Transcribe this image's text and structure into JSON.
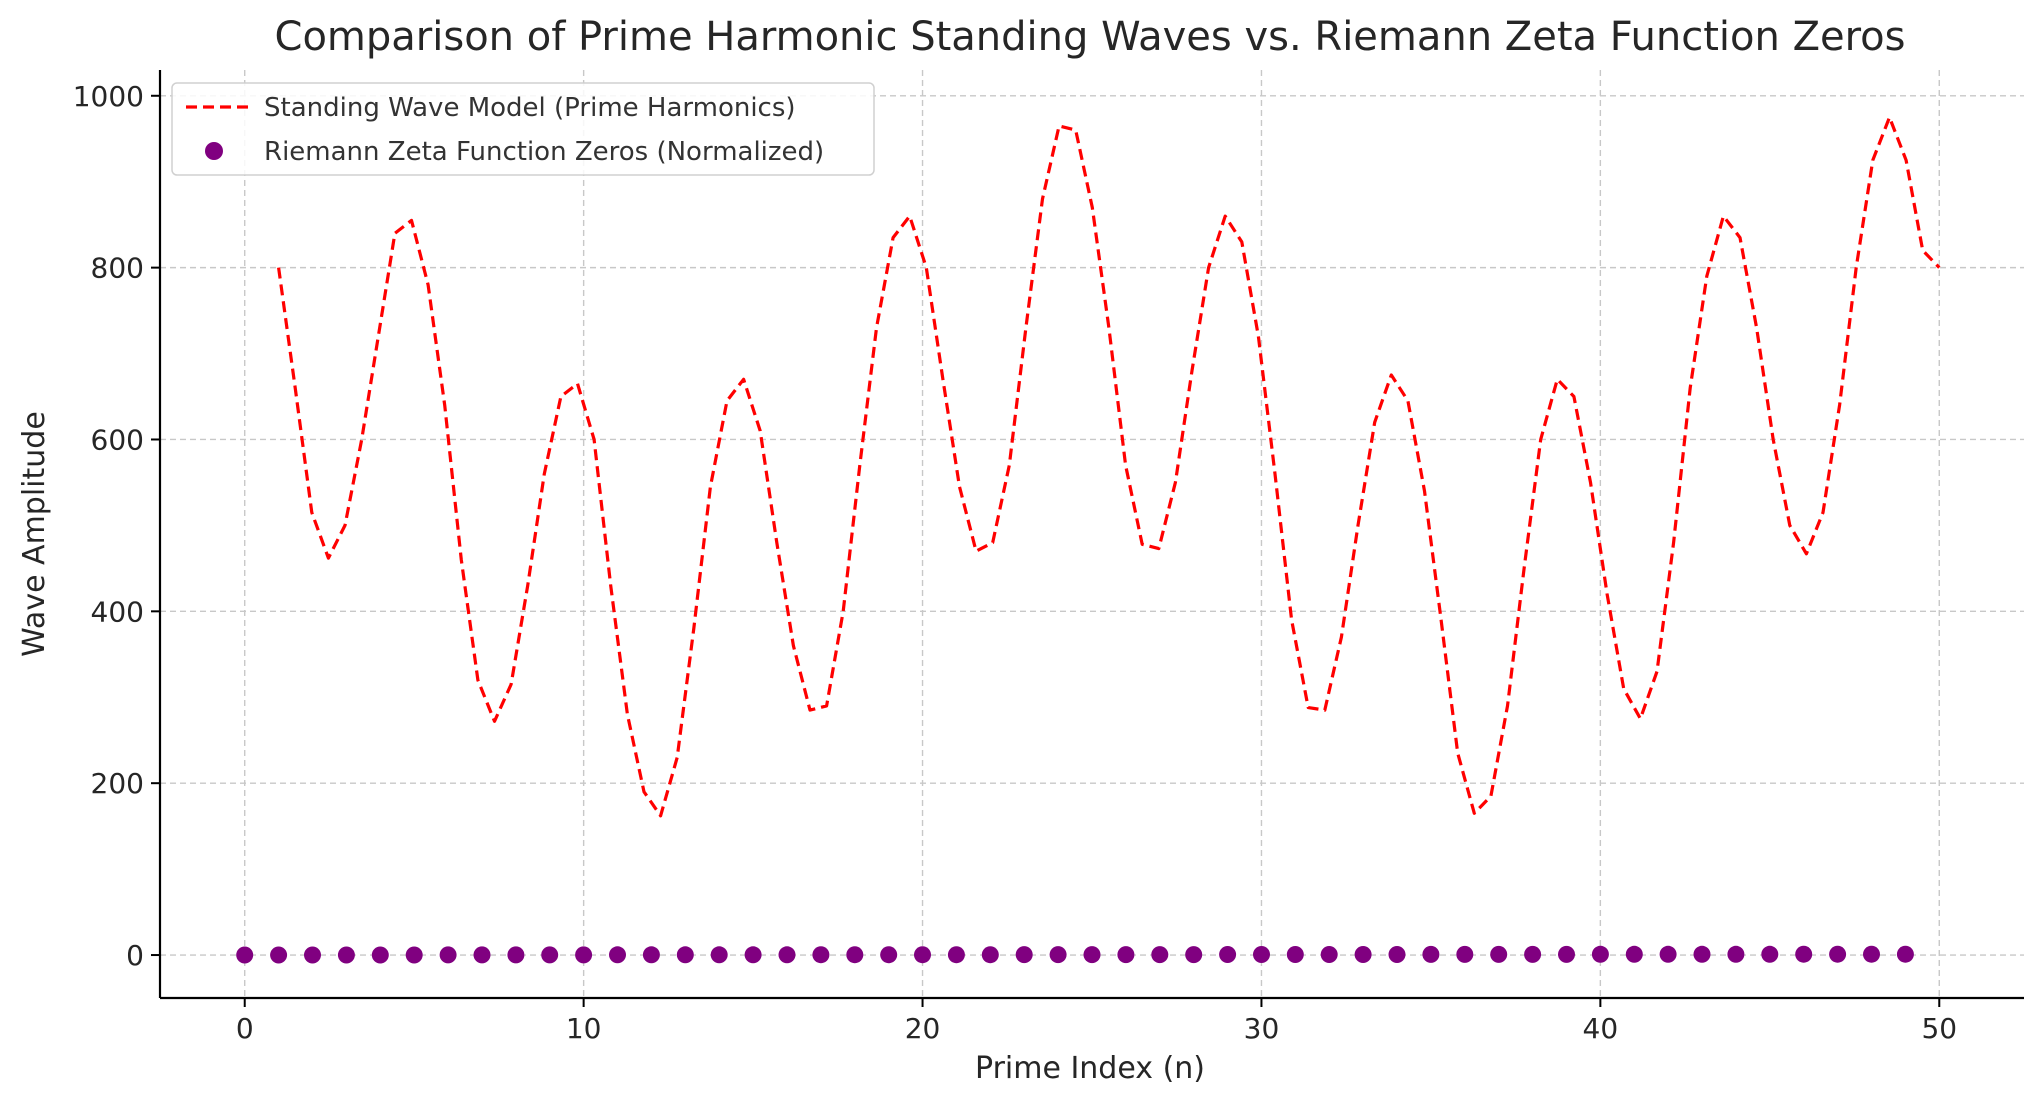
{
  "chart_data": {
    "type": "line",
    "title": "Comparison of Prime Harmonic Standing Waves vs. Riemann Zeta Function Zeros",
    "xlabel": "Prime Index (n)",
    "ylabel": "Wave Amplitude",
    "xlim": [
      -2.5,
      52.5
    ],
    "ylim": [
      -50,
      1030
    ],
    "xticks": [
      0,
      10,
      20,
      30,
      40,
      50
    ],
    "yticks": [
      0,
      200,
      400,
      600,
      800,
      1000
    ],
    "grid": true,
    "legend_position": "upper-left",
    "series": [
      {
        "name": "Standing Wave Model (Prime Harmonics)",
        "kind": "line",
        "style": "dashed",
        "color": "#ff0000",
        "x": [
          1.0,
          1.49,
          1.98,
          2.47,
          2.96,
          3.45,
          3.94,
          4.43,
          4.92,
          5.41,
          5.9,
          6.39,
          6.88,
          7.37,
          7.86,
          8.35,
          8.84,
          9.33,
          9.82,
          10.31,
          10.8,
          11.29,
          11.78,
          12.27,
          12.76,
          13.25,
          13.74,
          14.23,
          14.72,
          15.21,
          15.7,
          16.19,
          16.68,
          17.17,
          17.66,
          18.15,
          18.64,
          19.13,
          19.62,
          20.11,
          20.6,
          21.09,
          21.58,
          22.07,
          22.56,
          23.05,
          23.54,
          24.03,
          24.52,
          25.01,
          25.5,
          25.99,
          26.48,
          26.97,
          27.46,
          27.95,
          28.44,
          28.93,
          29.42,
          29.91,
          30.4,
          30.89,
          31.38,
          31.87,
          32.36,
          32.85,
          33.34,
          33.83,
          34.32,
          34.81,
          35.3,
          35.79,
          36.28,
          36.77,
          37.26,
          37.75,
          38.24,
          38.73,
          39.22,
          39.71,
          40.2,
          40.69,
          41.18,
          41.67,
          42.16,
          42.65,
          43.14,
          43.63,
          44.12,
          44.61,
          45.1,
          45.59,
          46.08,
          46.57,
          47.06,
          47.55,
          48.04,
          48.53,
          49.02,
          49.51,
          50.0
        ],
        "y": [
          800,
          660,
          515,
          462,
          500,
          600,
          720,
          840,
          855,
          780,
          640,
          460,
          320,
          272,
          315,
          430,
          560,
          650,
          665,
          600,
          430,
          280,
          190,
          162,
          230,
          380,
          545,
          645,
          670,
          610,
          480,
          360,
          285,
          290,
          400,
          570,
          730,
          835,
          860,
          800,
          670,
          545,
          470,
          480,
          570,
          730,
          880,
          965,
          960,
          870,
          730,
          570,
          478,
          473,
          550,
          680,
          800,
          860,
          830,
          720,
          560,
          390,
          288,
          285,
          370,
          500,
          620,
          675,
          645,
          540,
          390,
          235,
          165,
          185,
          290,
          450,
          600,
          670,
          650,
          550,
          420,
          310,
          275,
          330,
          480,
          660,
          790,
          860,
          835,
          730,
          600,
          500,
          467,
          515,
          640,
          800,
          925,
          975,
          925,
          820,
          800
        ]
      },
      {
        "name": "Riemann Zeta Function Zeros (Normalized)",
        "kind": "scatter",
        "color": "#800080",
        "x": [
          0,
          1,
          2,
          3,
          4,
          5,
          6,
          7,
          8,
          9,
          10,
          11,
          12,
          13,
          14,
          15,
          16,
          17,
          18,
          19,
          20,
          21,
          22,
          23,
          24,
          25,
          26,
          27,
          28,
          29,
          30,
          31,
          32,
          33,
          34,
          35,
          36,
          37,
          38,
          39,
          40,
          41,
          42,
          43,
          44,
          45,
          46,
          47,
          48,
          49
        ],
        "y": [
          0.0,
          0.02,
          0.04,
          0.06,
          0.08,
          0.1,
          0.12,
          0.14,
          0.16,
          0.18,
          0.2,
          0.22,
          0.24,
          0.26,
          0.28,
          0.3,
          0.32,
          0.34,
          0.36,
          0.38,
          0.4,
          0.42,
          0.44,
          0.46,
          0.48,
          0.5,
          0.52,
          0.54,
          0.56,
          0.58,
          0.6,
          0.62,
          0.64,
          0.66,
          0.68,
          0.7,
          0.72,
          0.74,
          0.76,
          0.78,
          0.8,
          0.82,
          0.84,
          0.86,
          0.88,
          0.9,
          0.92,
          0.94,
          0.96,
          0.98
        ]
      }
    ]
  }
}
